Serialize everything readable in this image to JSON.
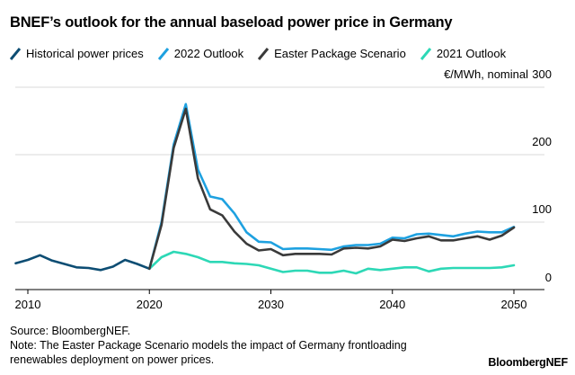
{
  "chart_data": {
    "type": "line",
    "title": "BNEF’s outlook for the annual baseload power price in Germany",
    "unit_label": "€/MWh, nominal",
    "xlabel": "",
    "ylabel": "€/MWh, nominal",
    "xlim": [
      2009,
      2052
    ],
    "ylim": [
      0,
      300
    ],
    "x_ticks": [
      "2010",
      "2020",
      "2030",
      "2040",
      "2050"
    ],
    "y_ticks": [
      "0",
      "100",
      "200",
      "300"
    ],
    "grid": true,
    "legend_position": "top",
    "series": [
      {
        "name": "Historical power prices",
        "color": "#0d4d73",
        "x": [
          2009,
          2010,
          2011,
          2012,
          2013,
          2014,
          2015,
          2016,
          2017,
          2018,
          2019,
          2020
        ],
        "y": [
          39,
          44,
          51,
          43,
          38,
          33,
          32,
          29,
          34,
          44,
          38,
          31
        ]
      },
      {
        "name": "2022 Outlook",
        "color": "#1ea1e0",
        "x": [
          2020,
          2021,
          2022,
          2023,
          2024,
          2025,
          2026,
          2027,
          2028,
          2029,
          2030,
          2031,
          2032,
          2033,
          2034,
          2035,
          2036,
          2037,
          2038,
          2039,
          2040,
          2041,
          2042,
          2043,
          2044,
          2045,
          2046,
          2047,
          2048,
          2049,
          2050
        ],
        "y": [
          31,
          100,
          215,
          275,
          178,
          138,
          134,
          113,
          85,
          71,
          70,
          60,
          61,
          61,
          60,
          59,
          64,
          66,
          66,
          68,
          77,
          76,
          82,
          83,
          81,
          79,
          83,
          86,
          85,
          85,
          93
        ]
      },
      {
        "name": "Easter Package Scenario",
        "color": "#3a3a3a",
        "x": [
          2020,
          2021,
          2022,
          2023,
          2024,
          2025,
          2026,
          2027,
          2028,
          2029,
          2030,
          2031,
          2032,
          2033,
          2034,
          2035,
          2036,
          2037,
          2038,
          2039,
          2040,
          2041,
          2042,
          2043,
          2044,
          2045,
          2046,
          2047,
          2048,
          2049,
          2050
        ],
        "y": [
          31,
          96,
          210,
          268,
          165,
          119,
          110,
          86,
          68,
          58,
          60,
          51,
          53,
          53,
          53,
          52,
          61,
          62,
          61,
          64,
          74,
          72,
          76,
          79,
          73,
          73,
          76,
          79,
          74,
          80,
          92
        ]
      },
      {
        "name": "2021 Outlook",
        "color": "#2dd8b6",
        "x": [
          2020,
          2021,
          2022,
          2023,
          2024,
          2025,
          2026,
          2027,
          2028,
          2029,
          2030,
          2031,
          2032,
          2033,
          2034,
          2035,
          2036,
          2037,
          2038,
          2039,
          2040,
          2041,
          2042,
          2043,
          2044,
          2045,
          2046,
          2047,
          2048,
          2049,
          2050
        ],
        "y": [
          31,
          48,
          56,
          53,
          48,
          41,
          41,
          39,
          38,
          36,
          31,
          26,
          28,
          28,
          25,
          25,
          28,
          24,
          31,
          29,
          31,
          33,
          33,
          27,
          31,
          32,
          32,
          32,
          32,
          33,
          36
        ]
      }
    ]
  },
  "footer": {
    "source": "Source: BloombergNEF.",
    "note_line1": "Note: The Easter Package Scenario models the impact of Germany frontloading",
    "note_line2": "renewables deployment on power prices."
  },
  "brand": "BloombergNEF"
}
